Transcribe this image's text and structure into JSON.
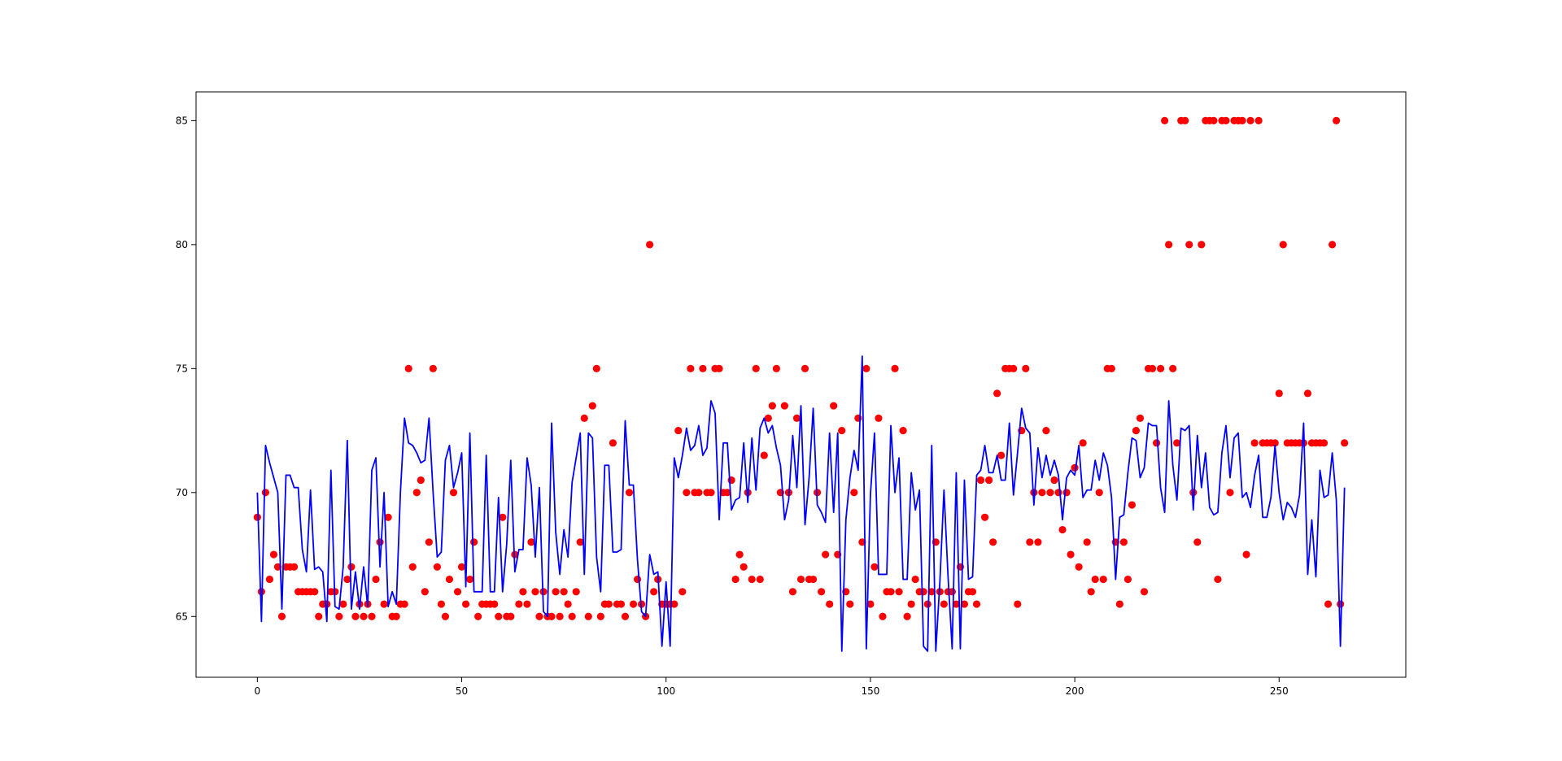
{
  "chart_data": {
    "type": "line",
    "xlim": [
      -15,
      281
    ],
    "ylim": [
      62.55,
      86.16
    ],
    "xticks": [
      0,
      50,
      100,
      150,
      200,
      250
    ],
    "yticks": [
      65,
      70,
      75,
      80,
      85
    ],
    "x": [
      0,
      1,
      2,
      3,
      4,
      5,
      6,
      7,
      8,
      9,
      10,
      11,
      12,
      13,
      14,
      15,
      16,
      17,
      18,
      19,
      20,
      21,
      22,
      23,
      24,
      25,
      26,
      27,
      28,
      29,
      30,
      31,
      32,
      33,
      34,
      35,
      36,
      37,
      38,
      39,
      40,
      41,
      42,
      43,
      44,
      45,
      46,
      47,
      48,
      49,
      50,
      51,
      52,
      53,
      54,
      55,
      56,
      57,
      58,
      59,
      60,
      61,
      62,
      63,
      64,
      65,
      66,
      67,
      68,
      69,
      70,
      71,
      72,
      73,
      74,
      75,
      76,
      77,
      78,
      79,
      80,
      81,
      82,
      83,
      84,
      85,
      86,
      87,
      88,
      89,
      90,
      91,
      92,
      93,
      94,
      95,
      96,
      97,
      98,
      99,
      100,
      101,
      102,
      103,
      104,
      105,
      106,
      107,
      108,
      109,
      110,
      111,
      112,
      113,
      114,
      115,
      116,
      117,
      118,
      119,
      120,
      121,
      122,
      123,
      124,
      125,
      126,
      127,
      128,
      129,
      130,
      131,
      132,
      133,
      134,
      135,
      136,
      137,
      138,
      139,
      140,
      141,
      142,
      143,
      144,
      145,
      146,
      147,
      148,
      149,
      150,
      151,
      152,
      153,
      154,
      155,
      156,
      157,
      158,
      159,
      160,
      161,
      162,
      163,
      164,
      165,
      166,
      167,
      168,
      169,
      170,
      171,
      172,
      173,
      174,
      175,
      176,
      177,
      178,
      179,
      180,
      181,
      182,
      183,
      184,
      185,
      186,
      187,
      188,
      189,
      190,
      191,
      192,
      193,
      194,
      195,
      196,
      197,
      198,
      199,
      200,
      201,
      202,
      203,
      204,
      205,
      206,
      207,
      208,
      209,
      210,
      211,
      212,
      213,
      214,
      215,
      216,
      217,
      218,
      219,
      220,
      221,
      222,
      223,
      224,
      225,
      226,
      227,
      228,
      229,
      230,
      231,
      232,
      233,
      234,
      235,
      236,
      237,
      238,
      239,
      240,
      241,
      242,
      243,
      244,
      245,
      246,
      247,
      248,
      249,
      250,
      251,
      252,
      253,
      254,
      255,
      256,
      257,
      258,
      259,
      260,
      261,
      262,
      263,
      264,
      265,
      266
    ],
    "series": [
      {
        "type": "scatter",
        "color": "#ff0000",
        "values": [
          69,
          66,
          70,
          66.5,
          67.5,
          67,
          65,
          67,
          67,
          67,
          66,
          66,
          66,
          66,
          66,
          65,
          65.5,
          65.5,
          66,
          66,
          65,
          65.5,
          66.5,
          67,
          65,
          65.5,
          65,
          65.5,
          65,
          66.5,
          68,
          65.5,
          69,
          65,
          65,
          65.5,
          65.5,
          75,
          67,
          70,
          70.5,
          66,
          68,
          75,
          67,
          65.5,
          65,
          66.5,
          70,
          66,
          67,
          65.5,
          66.5,
          68,
          65,
          65.5,
          65.5,
          65.5,
          65.5,
          65,
          69,
          65,
          65,
          67.5,
          65.5,
          66,
          65.5,
          68,
          66,
          65,
          66,
          65,
          65,
          66,
          65,
          66,
          65.5,
          65,
          66,
          68,
          73,
          65,
          73.5,
          75,
          65,
          65.5,
          65.5,
          72,
          65.5,
          65.5,
          65,
          70,
          65.5,
          66.5,
          65.5,
          65,
          80,
          66,
          66.5,
          65.5,
          65.5,
          65.5,
          65.5,
          72.5,
          66,
          70,
          75,
          70,
          70,
          75,
          70,
          70,
          75,
          75,
          70,
          70,
          70.5,
          66.5,
          67.5,
          67,
          70,
          66.5,
          75,
          66.5,
          71.5,
          73,
          73.5,
          75,
          70,
          73.5,
          70,
          66,
          73,
          66.5,
          75,
          66.5,
          66.5,
          70,
          66,
          67.5,
          65.5,
          73.5,
          67.5,
          72.5,
          66,
          65.5,
          70,
          73,
          68,
          75,
          65.5,
          67,
          73,
          65,
          66,
          66,
          75,
          66,
          72.5,
          65,
          65.5,
          66.5,
          66,
          66,
          65.5,
          66,
          68,
          66,
          65.5,
          66,
          66,
          65.5,
          67,
          65.5,
          66,
          66,
          65.5,
          70.5,
          69,
          70.5,
          68,
          74,
          71.5,
          75,
          75,
          75,
          65.5,
          72.5,
          75,
          68,
          70,
          68,
          70,
          72.5,
          70,
          70.5,
          70,
          68.5,
          70,
          67.5,
          71,
          67,
          72,
          68,
          66,
          66.5,
          70,
          66.5,
          75,
          75,
          68,
          65.5,
          68,
          66.5,
          69.5,
          72.5,
          73,
          66,
          75,
          75,
          72,
          75,
          85,
          80,
          75,
          72,
          85,
          85,
          80,
          70,
          68,
          80,
          85,
          85,
          85,
          66.5,
          85,
          85,
          70,
          85,
          85,
          85,
          67.5,
          85,
          72,
          85,
          72,
          72,
          72,
          72,
          74,
          80,
          72,
          72,
          72,
          72,
          72,
          74,
          72,
          72,
          72,
          72,
          65.5,
          80,
          85,
          65.5,
          72
        ]
      },
      {
        "type": "line",
        "color": "#0000ff",
        "values": [
          70,
          64.8,
          71.9,
          71.2,
          70.6,
          70,
          65.3,
          70.7,
          70.7,
          70.2,
          70.2,
          67.7,
          66.8,
          70.1,
          66.9,
          67,
          66.8,
          64.8,
          70.9,
          65.4,
          65.3,
          67,
          72.1,
          65.3,
          66.8,
          65.3,
          67,
          65.4,
          70.9,
          71.4,
          67,
          70,
          65.4,
          66,
          65.5,
          70,
          73,
          72,
          71.9,
          71.6,
          71.2,
          71.3,
          73,
          70,
          67.4,
          67.6,
          71.3,
          71.9,
          70.2,
          70.8,
          71.6,
          66.2,
          72.4,
          66,
          66,
          66,
          71.5,
          66,
          66,
          69.8,
          66,
          67.9,
          71.3,
          66.8,
          67.7,
          67.7,
          71.4,
          70.3,
          67.4,
          70.2,
          65.2,
          65,
          72.8,
          68.4,
          66.7,
          68.5,
          67.4,
          70.4,
          71.4,
          72.4,
          66.7,
          72.4,
          72.2,
          67.4,
          66,
          71.1,
          71.1,
          67.6,
          67.6,
          67.7,
          72.9,
          70.3,
          70.3,
          67.3,
          65.2,
          65,
          67.5,
          66.7,
          66.8,
          63.8,
          66.4,
          63.8,
          71.4,
          70.6,
          71.5,
          72.6,
          71.7,
          71.9,
          72.7,
          71.5,
          71.8,
          73.7,
          73.2,
          68.9,
          72,
          72,
          69.3,
          69.7,
          69.8,
          72,
          69.6,
          72.2,
          70.1,
          72.6,
          73,
          72.4,
          72.7,
          71.8,
          71.1,
          68.9,
          69.7,
          72.3,
          70.2,
          73.5,
          68.7,
          70.6,
          73.4,
          69.5,
          69.2,
          68.8,
          72.4,
          69.2,
          72.4,
          63.6,
          68.9,
          70.6,
          71.7,
          70.9,
          75.5,
          63.7,
          69.9,
          72.4,
          66.7,
          66.7,
          66.7,
          72.7,
          70,
          71.4,
          66.5,
          66.5,
          70.8,
          69.3,
          70.1,
          63.8,
          63.6,
          71.9,
          63.6,
          66.4,
          70.1,
          66.6,
          63.7,
          70.8,
          63.7,
          70.5,
          66.5,
          66.6,
          70.7,
          70.9,
          71.9,
          70.8,
          70.8,
          71.5,
          70.5,
          70.5,
          72.8,
          69.9,
          71.6,
          73.4,
          72.6,
          72.4,
          69.5,
          71.8,
          70.6,
          71.5,
          70.7,
          71.3,
          70.7,
          68.9,
          70.6,
          70.9,
          70.7,
          71.9,
          69.8,
          70.1,
          70.1,
          71.3,
          70.5,
          71.6,
          71.1,
          69.8,
          66.5,
          69,
          69.1,
          70.8,
          72.2,
          72.1,
          70.6,
          71,
          72.8,
          72.7,
          72.7,
          70.2,
          69.2,
          73.7,
          71.1,
          69.7,
          72.6,
          72.5,
          72.7,
          69.3,
          72.3,
          70.2,
          71.6,
          69.4,
          69.1,
          69.2,
          71.6,
          72.7,
          70.6,
          72.2,
          72.4,
          69.8,
          70,
          69.4,
          70.7,
          71.5,
          69,
          69,
          69.8,
          71.9,
          70,
          68.9,
          69.6,
          69.4,
          69,
          69.9,
          72.8,
          66.7,
          68.9,
          66.6,
          70.9,
          69.8,
          69.9,
          71.6,
          69.7,
          63.8,
          70.2
        ]
      }
    ]
  }
}
